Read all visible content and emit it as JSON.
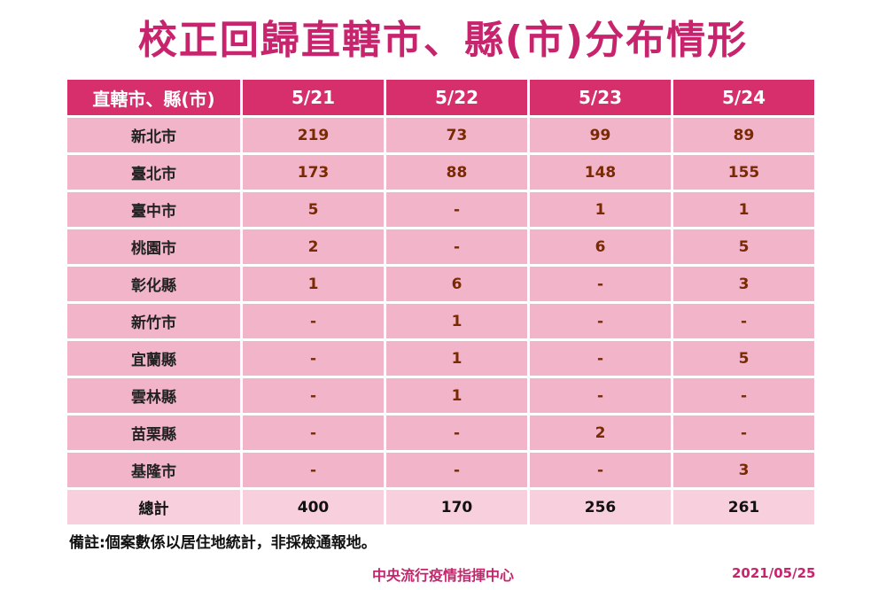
{
  "title": "校正回歸直轄市、縣(市)分布情形",
  "table": {
    "headers": [
      "直轄市、縣(市)",
      "5/21",
      "5/22",
      "5/23",
      "5/24"
    ],
    "rows": [
      {
        "name": "新北市",
        "values": [
          "219",
          "73",
          "99",
          "89"
        ]
      },
      {
        "name": "臺北市",
        "values": [
          "173",
          "88",
          "148",
          "155"
        ]
      },
      {
        "name": "臺中市",
        "values": [
          "5",
          "-",
          "1",
          "1"
        ]
      },
      {
        "name": "桃園市",
        "values": [
          "2",
          "-",
          "6",
          "5"
        ]
      },
      {
        "name": "彰化縣",
        "values": [
          "1",
          "6",
          "-",
          "3"
        ]
      },
      {
        "name": "新竹市",
        "values": [
          "-",
          "1",
          "-",
          "-"
        ]
      },
      {
        "name": "宜蘭縣",
        "values": [
          "-",
          "1",
          "-",
          "5"
        ]
      },
      {
        "name": "雲林縣",
        "values": [
          "-",
          "1",
          "-",
          "-"
        ]
      },
      {
        "name": "苗栗縣",
        "values": [
          "-",
          "-",
          "2",
          "-"
        ]
      },
      {
        "name": "基隆市",
        "values": [
          "-",
          "-",
          "-",
          "3"
        ]
      }
    ],
    "total": {
      "name": "總計",
      "values": [
        "400",
        "170",
        "256",
        "261"
      ]
    }
  },
  "note": "備註:個案數係以居住地統計，非採檢通報地。",
  "agency": "中央流行疫情指揮中心",
  "date": "2021/05/25",
  "colors": {
    "accent": "#c8246e",
    "header_bg": "#d62f6b",
    "row_bg": "#f2b4c9",
    "total_bg": "#f8cfdc",
    "value_text": "#7a2a00"
  }
}
